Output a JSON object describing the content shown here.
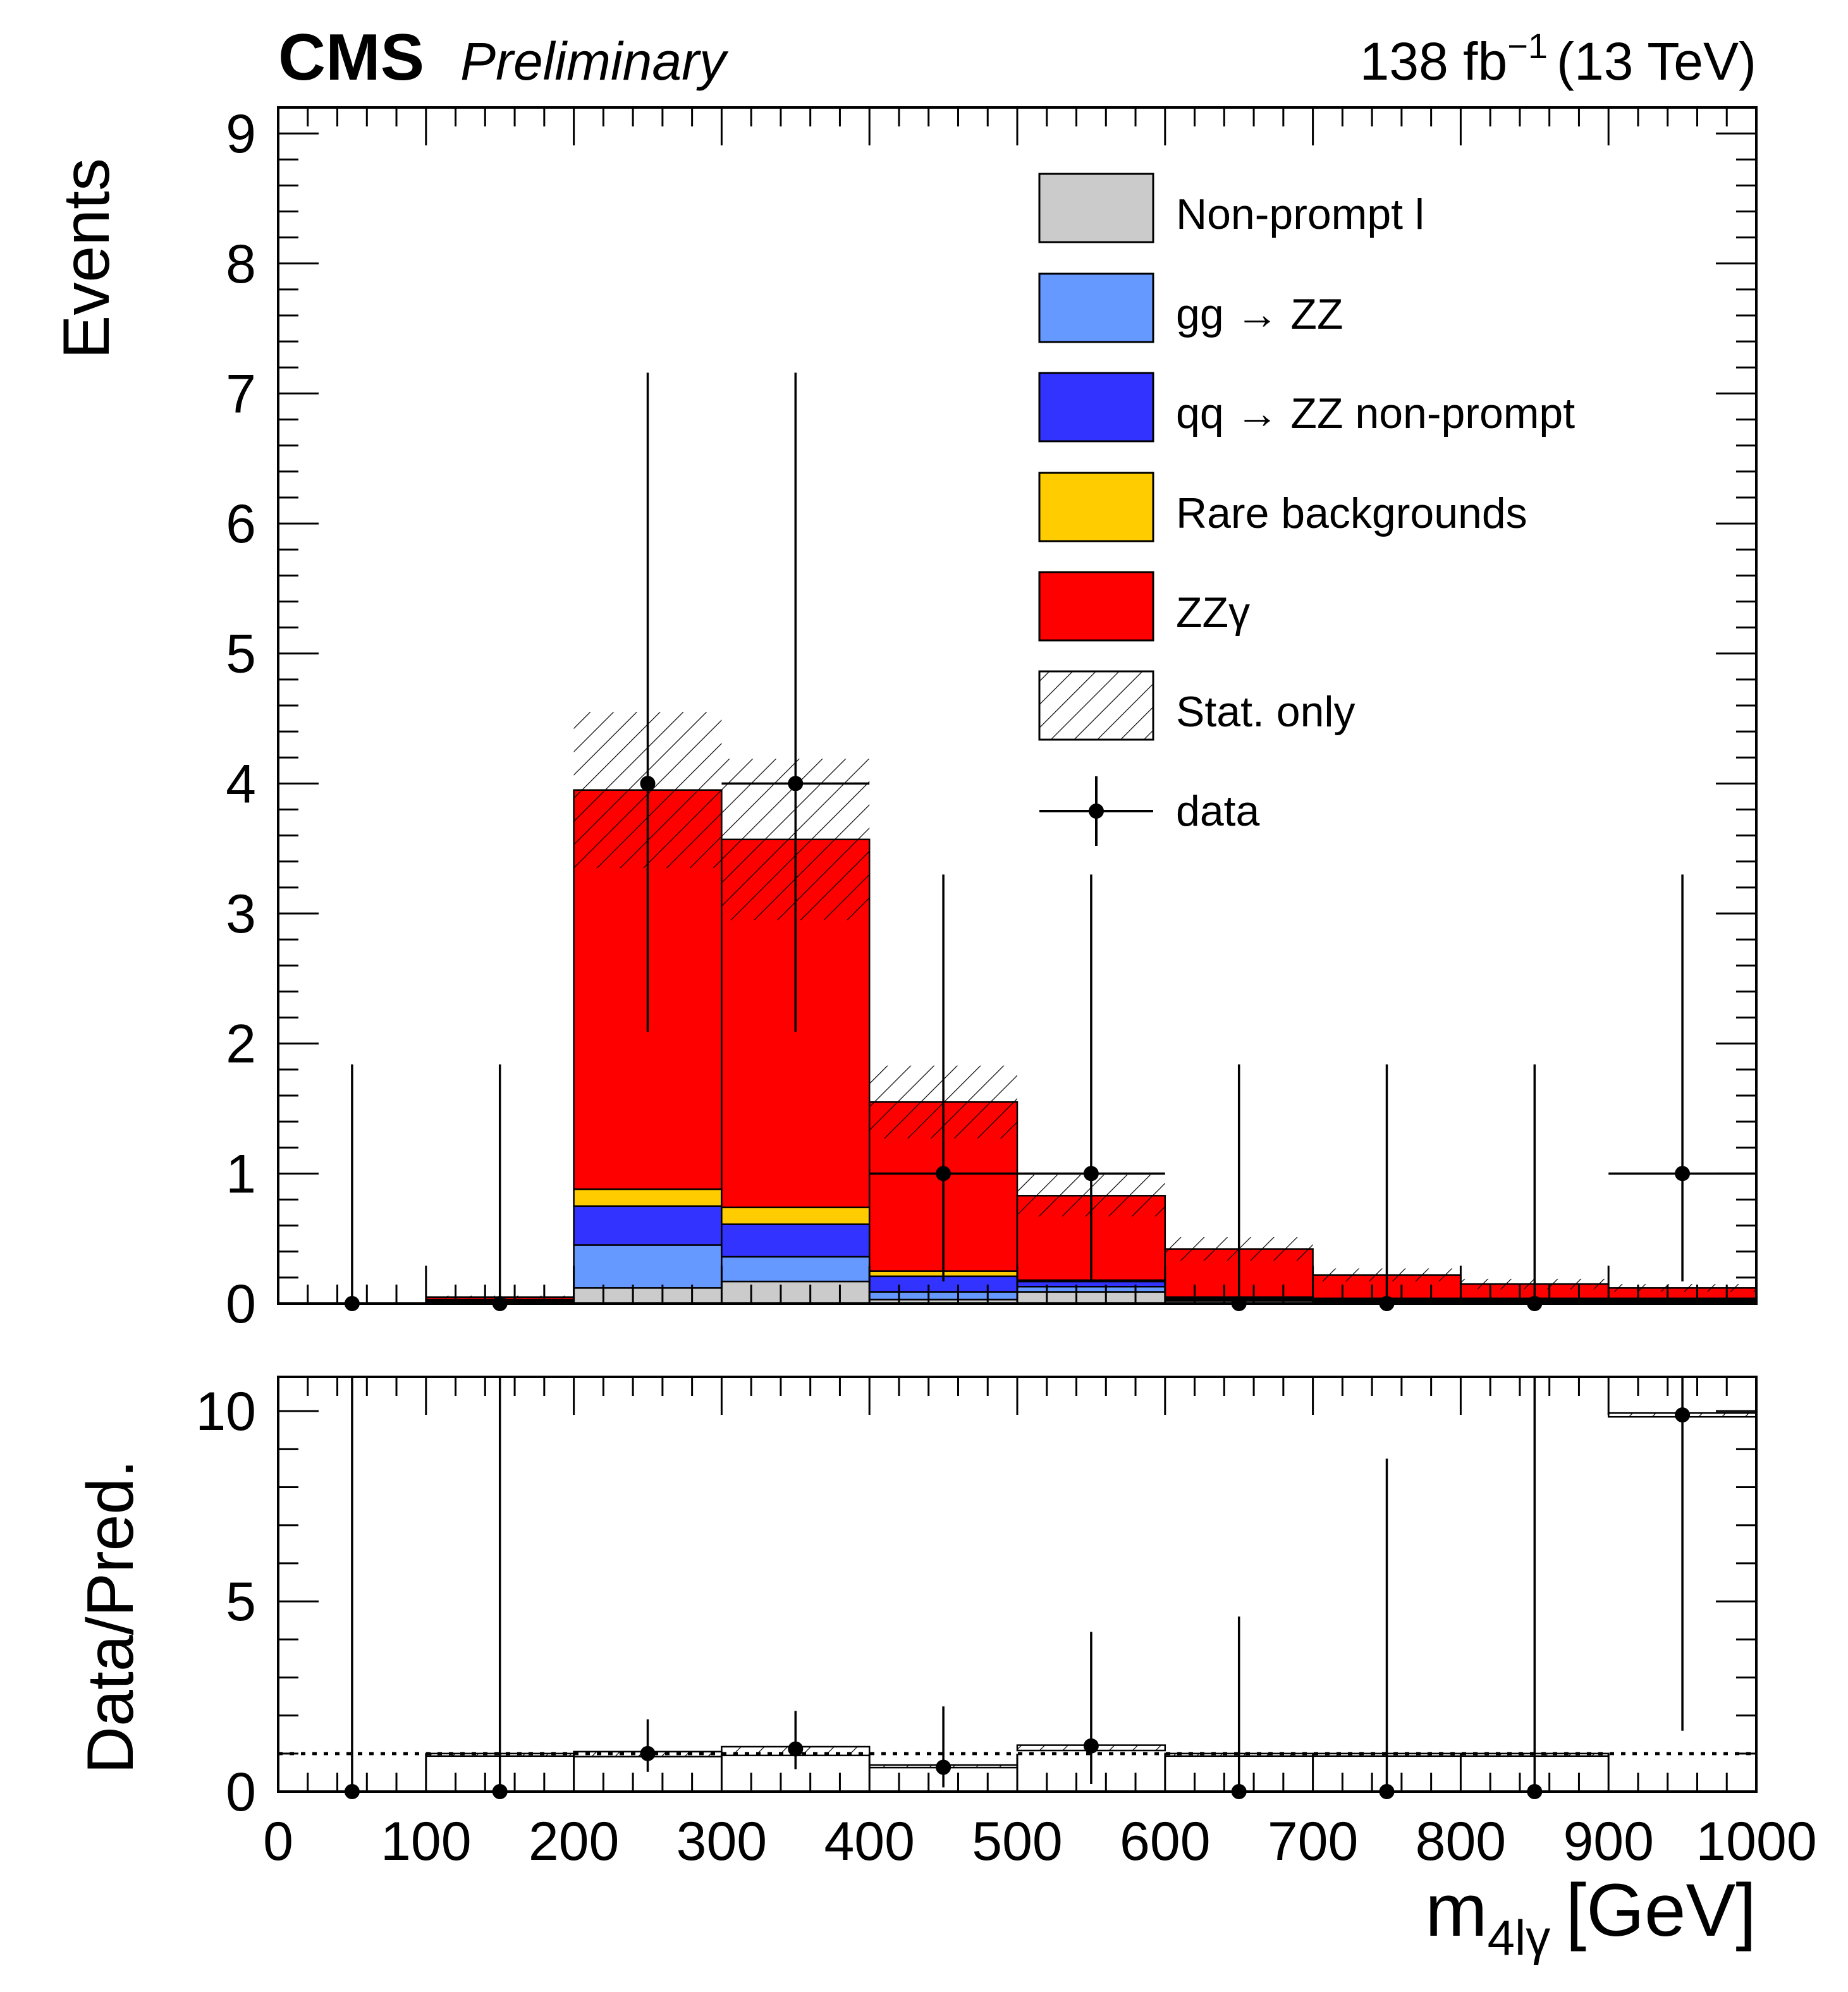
{
  "header": {
    "experiment": "CMS",
    "status": "Preliminary",
    "lumi_value": "138 fb",
    "lumi_exponent": "−1",
    "energy": "(13 TeV)"
  },
  "chart_data": [
    {
      "panel": "main",
      "type": "stacked-histogram",
      "xlabel": "m",
      "xlabel_subscript": "4lγ",
      "xlabel_unit": "[GeV]",
      "ylabel": "Events",
      "xlim": [
        0,
        1000
      ],
      "ylim": [
        0,
        9.2
      ],
      "bin_edges": [
        0,
        100,
        200,
        300,
        400,
        500,
        600,
        700,
        800,
        900,
        1000
      ],
      "x_tick_labels": [
        "0",
        "100",
        "200",
        "300",
        "400",
        "500",
        "600",
        "700",
        "800",
        "900",
        "1000"
      ],
      "y_tick_labels": [
        "0",
        "1",
        "2",
        "3",
        "4",
        "5",
        "6",
        "7",
        "8",
        "9"
      ],
      "legend_position": "top-right",
      "series": [
        {
          "name": "Non-prompt l",
          "color": "#cbcbcb",
          "values": [
            0,
            0,
            0.12,
            0.17,
            0.03,
            0.09,
            0.02,
            0.01,
            0.01,
            0.01
          ]
        },
        {
          "name": "gg → ZZ",
          "color": "#6699ff",
          "values": [
            0,
            0.01,
            0.33,
            0.19,
            0.06,
            0.04,
            0.01,
            0.01,
            0.01,
            0.01
          ]
        },
        {
          "name": "qq → ZZ non-prompt",
          "color": "#3333ff",
          "values": [
            0,
            0.01,
            0.3,
            0.25,
            0.12,
            0.04,
            0.01,
            0.01,
            0.01,
            0.01
          ]
        },
        {
          "name": "Rare backgrounds",
          "color": "#ffcc00",
          "values": [
            0,
            0.01,
            0.13,
            0.13,
            0.04,
            0.01,
            0.01,
            0.01,
            0.01,
            0.01
          ]
        },
        {
          "name": "ZZγ",
          "color": "#ff0000",
          "values": [
            0,
            0.02,
            3.07,
            2.83,
            1.3,
            0.65,
            0.37,
            0.18,
            0.11,
            0.08
          ]
        }
      ],
      "stat_uncertainty": {
        "name": "Stat. only",
        "values": [
          0,
          0.01,
          0.6,
          0.62,
          0.28,
          0.16,
          0.09,
          0.05,
          0.04,
          0.03
        ]
      },
      "data": {
        "name": "data",
        "x": [
          50,
          150,
          250,
          350,
          450,
          550,
          650,
          750,
          850,
          950
        ],
        "y": [
          0,
          0,
          4,
          4,
          1,
          1,
          0,
          0,
          0,
          1
        ],
        "err_low": [
          0,
          0,
          1.91,
          1.91,
          0.83,
          0.83,
          0,
          0,
          0,
          0.83
        ],
        "err_high": [
          1.84,
          1.84,
          3.16,
          3.16,
          2.3,
          2.3,
          1.84,
          1.84,
          1.84,
          2.3
        ],
        "draw_x_err": [
          false,
          false,
          false,
          true,
          true,
          true,
          false,
          false,
          false,
          true
        ]
      }
    },
    {
      "panel": "ratio",
      "type": "ratio",
      "ylabel": "Data/Pred.",
      "xlim": [
        0,
        1000
      ],
      "ylim": [
        0,
        10.9
      ],
      "y_tick_labels": [
        "0",
        "5",
        "10"
      ],
      "reference_line": 1,
      "stat_band": [
        {
          "low": 0,
          "high": 0
        },
        {
          "low": 1,
          "high": 1
        },
        {
          "low": 0.92,
          "high": 1.05
        },
        {
          "low": 0.95,
          "high": 1.18
        },
        {
          "low": 0.63,
          "high": 0.7
        },
        {
          "low": 1.08,
          "high": 1.22
        },
        {
          "low": 1,
          "high": 1
        },
        {
          "low": 1,
          "high": 1
        },
        {
          "low": 1,
          "high": 1
        },
        {
          "low": 9.85,
          "high": 9.95
        }
      ],
      "points": {
        "x": [
          50,
          150,
          250,
          350,
          450,
          550,
          650,
          750,
          850,
          950
        ],
        "y": [
          0,
          0,
          1.0,
          1.12,
          0.64,
          1.2,
          0,
          0,
          0,
          9.9
        ],
        "err_low": [
          0,
          0,
          0.48,
          0.53,
          0.53,
          1.0,
          0,
          0,
          0,
          8.3
        ],
        "err_high": [
          10.9,
          10.9,
          0.9,
          1.0,
          1.6,
          3.0,
          4.6,
          8.75,
          10.9,
          10.9
        ]
      }
    }
  ]
}
